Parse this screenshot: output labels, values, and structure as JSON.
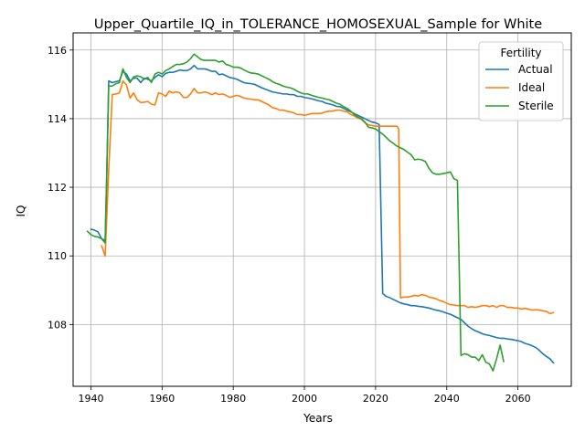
{
  "chart_data": {
    "type": "line",
    "title": "Upper_Quartile_IQ_in_TOLERANCE_HOMOSEXUAL_Sample for White",
    "xlabel": "Years",
    "ylabel": "IQ",
    "xlim": [
      1935,
      2075
    ],
    "ylim": [
      106.2,
      116.5
    ],
    "xticks": [
      1940,
      1960,
      1980,
      2000,
      2020,
      2040,
      2060
    ],
    "yticks": [
      108,
      110,
      112,
      114,
      116
    ],
    "grid": true,
    "legend": {
      "title": "Fertility",
      "placement": "upper right",
      "entries": [
        "Actual",
        "Ideal",
        "Sterile"
      ]
    },
    "series": [
      {
        "name": "Actual",
        "color": "#1f77b4",
        "x": [
          1940,
          1941,
          1942,
          1943,
          1944,
          1944.5,
          1945,
          1946,
          1947,
          1948,
          1949,
          1950,
          1951,
          1952,
          1953,
          1954,
          1955,
          1956,
          1957,
          1958,
          1959,
          1960,
          1961,
          1962,
          1963,
          1964,
          1965,
          1966,
          1967,
          1968,
          1969,
          1970,
          1971,
          1972,
          1973,
          1974,
          1975,
          1976,
          1977,
          1978,
          1979,
          1980,
          1981,
          1982,
          1983,
          1984,
          1985,
          1986,
          1987,
          1988,
          1989,
          1990,
          1991,
          1992,
          1993,
          1994,
          1995,
          1996,
          1997,
          1998,
          1999,
          2000,
          2001,
          2002,
          2003,
          2004,
          2005,
          2006,
          2007,
          2008,
          2009,
          2010,
          2011,
          2012,
          2013,
          2014,
          2015,
          2016,
          2017,
          2018,
          2019,
          2020,
          2021,
          2022,
          2023,
          2024,
          2025,
          2026,
          2027,
          2028,
          2029,
          2030,
          2031,
          2032,
          2033,
          2034,
          2035,
          2036,
          2037,
          2038,
          2039,
          2040,
          2041,
          2042,
          2043,
          2044,
          2045,
          2046,
          2047,
          2048,
          2049,
          2050,
          2051,
          2052,
          2053,
          2054,
          2055,
          2056,
          2057,
          2058,
          2059,
          2060,
          2061,
          2062,
          2063,
          2064,
          2065,
          2066,
          2067,
          2068,
          2069,
          2070
        ],
        "values": [
          110.78,
          110.75,
          110.7,
          110.5,
          110.45,
          112.5,
          115.1,
          115.05,
          115.08,
          115.1,
          115.38,
          115.3,
          115.1,
          115.18,
          115.18,
          115.05,
          115.18,
          115.15,
          115.1,
          115.2,
          115.28,
          115.22,
          115.32,
          115.35,
          115.35,
          115.38,
          115.42,
          115.4,
          115.4,
          115.45,
          115.55,
          115.45,
          115.45,
          115.45,
          115.42,
          115.38,
          115.38,
          115.28,
          115.3,
          115.25,
          115.2,
          115.18,
          115.15,
          115.1,
          115.05,
          115.03,
          115.02,
          115.0,
          114.95,
          114.9,
          114.86,
          114.82,
          114.78,
          114.76,
          114.74,
          114.72,
          114.72,
          114.7,
          114.7,
          114.65,
          114.65,
          114.62,
          114.6,
          114.58,
          114.55,
          114.52,
          114.5,
          114.45,
          114.43,
          114.4,
          114.36,
          114.35,
          114.3,
          114.25,
          114.2,
          114.15,
          114.1,
          114.05,
          114.0,
          113.95,
          113.9,
          113.88,
          113.83,
          108.9,
          108.82,
          108.78,
          108.73,
          108.68,
          108.63,
          108.6,
          108.58,
          108.55,
          108.55,
          108.53,
          108.52,
          108.5,
          108.48,
          108.45,
          108.42,
          108.4,
          108.37,
          108.33,
          108.3,
          108.25,
          108.2,
          108.15,
          108.05,
          107.95,
          107.88,
          107.82,
          107.78,
          107.73,
          107.7,
          107.68,
          107.65,
          107.62,
          107.6,
          107.6,
          107.58,
          107.57,
          107.55,
          107.53,
          107.5,
          107.45,
          107.42,
          107.38,
          107.33,
          107.25,
          107.15,
          107.07,
          107.0,
          106.88
        ]
      },
      {
        "name": "Ideal",
        "color": "#ff7f0e",
        "x": [
          1943,
          1944,
          1945,
          1946,
          1947,
          1948,
          1949,
          1950,
          1951,
          1952,
          1953,
          1954,
          1955,
          1956,
          1957,
          1958,
          1959,
          1960,
          1961,
          1962,
          1963,
          1964,
          1965,
          1966,
          1967,
          1968,
          1969,
          1970,
          1971,
          1972,
          1973,
          1974,
          1975,
          1976,
          1977,
          1978,
          1979,
          1980,
          1981,
          1982,
          1983,
          1984,
          1985,
          1986,
          1987,
          1988,
          1989,
          1990,
          1991,
          1992,
          1993,
          1994,
          1995,
          1996,
          1997,
          1998,
          1999,
          2000,
          2001,
          2002,
          2003,
          2004,
          2005,
          2006,
          2007,
          2008,
          2009,
          2010,
          2011,
          2012,
          2013,
          2014,
          2015,
          2016,
          2017,
          2018,
          2019,
          2020,
          2021,
          2022,
          2023,
          2024,
          2025,
          2026,
          2026.5,
          2027,
          2028,
          2029,
          2030,
          2031,
          2032,
          2033,
          2034,
          2035,
          2036,
          2037,
          2038,
          2039,
          2040,
          2041,
          2042,
          2043,
          2044,
          2045,
          2046,
          2047,
          2048,
          2049,
          2050,
          2051,
          2052,
          2053,
          2054,
          2055,
          2056,
          2057,
          2058,
          2059,
          2060,
          2061,
          2062,
          2063,
          2064,
          2065,
          2066,
          2067,
          2068,
          2069,
          2070
        ],
        "values": [
          110.3,
          110.0,
          112.5,
          114.7,
          114.72,
          114.75,
          115.1,
          114.98,
          114.6,
          114.75,
          114.55,
          114.47,
          114.48,
          114.5,
          114.42,
          114.4,
          114.75,
          114.72,
          114.65,
          114.8,
          114.75,
          114.78,
          114.75,
          114.62,
          114.62,
          114.72,
          114.88,
          114.75,
          114.75,
          114.78,
          114.75,
          114.7,
          114.75,
          114.7,
          114.72,
          114.68,
          114.62,
          114.65,
          114.68,
          114.65,
          114.6,
          114.58,
          114.57,
          114.55,
          114.55,
          114.5,
          114.45,
          114.4,
          114.32,
          114.3,
          114.25,
          114.25,
          114.22,
          114.2,
          114.17,
          114.12,
          114.12,
          114.1,
          114.12,
          114.15,
          114.15,
          114.15,
          114.16,
          114.2,
          114.22,
          114.22,
          114.25,
          114.25,
          114.22,
          114.2,
          114.12,
          114.08,
          114.02,
          113.98,
          113.88,
          113.82,
          113.8,
          113.78,
          113.78,
          113.78,
          113.78,
          113.78,
          113.78,
          113.78,
          113.7,
          108.78,
          108.8,
          108.8,
          108.82,
          108.85,
          108.83,
          108.87,
          108.85,
          108.8,
          108.78,
          108.75,
          108.7,
          108.67,
          108.62,
          108.58,
          108.57,
          108.55,
          108.55,
          108.55,
          108.5,
          108.52,
          108.5,
          108.52,
          108.55,
          108.55,
          108.52,
          108.55,
          108.5,
          108.55,
          108.55,
          108.5,
          108.5,
          108.48,
          108.48,
          108.45,
          108.47,
          108.45,
          108.42,
          108.43,
          108.42,
          108.4,
          108.38,
          108.32,
          108.35
        ]
      },
      {
        "name": "Sterile",
        "color": "#2ca02c",
        "x": [
          1939,
          1940,
          1941,
          1942,
          1943,
          1944,
          1945,
          1946,
          1947,
          1948,
          1949,
          1950,
          1951,
          1952,
          1953,
          1954,
          1955,
          1956,
          1957,
          1958,
          1959,
          1960,
          1961,
          1962,
          1963,
          1964,
          1965,
          1966,
          1967,
          1968,
          1969,
          1970,
          1971,
          1972,
          1973,
          1974,
          1975,
          1976,
          1977,
          1978,
          1979,
          1980,
          1981,
          1982,
          1983,
          1984,
          1985,
          1986,
          1987,
          1988,
          1989,
          1990,
          1991,
          1992,
          1993,
          1994,
          1995,
          1996,
          1997,
          1998,
          1999,
          2000,
          2001,
          2002,
          2003,
          2004,
          2005,
          2006,
          2007,
          2008,
          2009,
          2010,
          2011,
          2012,
          2013,
          2014,
          2015,
          2016,
          2017,
          2018,
          2019,
          2020,
          2021,
          2022,
          2023,
          2024,
          2025,
          2026,
          2027,
          2028,
          2029,
          2030,
          2031,
          2032,
          2033,
          2034,
          2035,
          2036,
          2037,
          2038,
          2039,
          2040,
          2041,
          2042,
          2043,
          2044,
          2045,
          2046,
          2047,
          2048,
          2049,
          2050,
          2051,
          2052,
          2053,
          2054,
          2055,
          2056
        ],
        "values": [
          110.72,
          110.62,
          110.57,
          110.55,
          110.5,
          110.38,
          114.95,
          114.95,
          115.02,
          115.05,
          115.45,
          115.2,
          115.05,
          115.22,
          115.25,
          115.22,
          115.15,
          115.2,
          115.05,
          115.3,
          115.35,
          115.3,
          115.4,
          115.45,
          115.52,
          115.58,
          115.58,
          115.6,
          115.65,
          115.75,
          115.88,
          115.8,
          115.72,
          115.7,
          115.7,
          115.7,
          115.7,
          115.65,
          115.68,
          115.58,
          115.55,
          115.5,
          115.5,
          115.48,
          115.42,
          115.37,
          115.33,
          115.32,
          115.3,
          115.25,
          115.2,
          115.15,
          115.08,
          115.03,
          115.0,
          114.95,
          114.92,
          114.9,
          114.86,
          114.8,
          114.75,
          114.72,
          114.72,
          114.68,
          114.65,
          114.62,
          114.6,
          114.57,
          114.55,
          114.5,
          114.45,
          114.42,
          114.35,
          114.3,
          114.22,
          114.12,
          114.05,
          114.0,
          113.9,
          113.75,
          113.73,
          113.7,
          113.62,
          113.55,
          113.45,
          113.35,
          113.28,
          113.2,
          113.15,
          113.1,
          113.02,
          112.95,
          112.8,
          112.82,
          112.8,
          112.75,
          112.55,
          112.42,
          112.38,
          112.38,
          112.4,
          112.42,
          112.45,
          112.25,
          112.2,
          107.1,
          107.15,
          107.12,
          107.05,
          107.05,
          106.95,
          107.12,
          106.9,
          106.85,
          106.65,
          107.0,
          107.4,
          106.92
        ]
      }
    ]
  }
}
